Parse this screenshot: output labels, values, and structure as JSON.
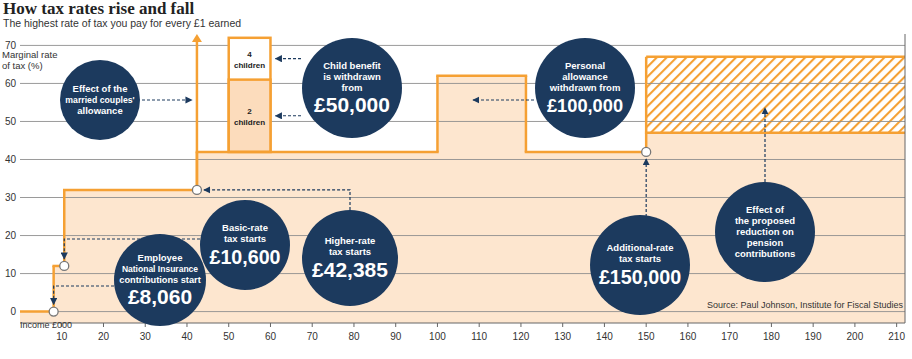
{
  "chart_data": {
    "type": "step",
    "title": "How tax rates rise and fall",
    "subtitle": "The highest rate of tax you pay for every £1 earned",
    "y_label": [
      "Marginal rate",
      "of tax (%)"
    ],
    "x_label": "Income £000",
    "xlim": [
      0,
      212
    ],
    "ylim": [
      -3,
      73
    ],
    "xticks": [
      10,
      20,
      30,
      40,
      50,
      60,
      70,
      80,
      90,
      100,
      110,
      120,
      130,
      140,
      150,
      160,
      170,
      180,
      190,
      200,
      210
    ],
    "yticks": [
      0,
      10,
      20,
      30,
      40,
      50,
      60,
      70
    ],
    "grid": true,
    "series": [
      {
        "color": "#f5a033",
        "bins": [
          0,
          8.06,
          10.6,
          42.385,
          100,
          121.2,
          150,
          212
        ],
        "values": [
          0,
          12,
          32,
          42,
          62,
          42,
          47
        ]
      },
      {
        "name": "2 children",
        "color": "#f5a033",
        "bins": [
          50,
          60
        ],
        "values": [
          61
        ]
      },
      {
        "name": "4 children",
        "color": "#f5a033",
        "bins": [
          50,
          60
        ],
        "values": [
          72
        ]
      },
      {
        "color": "#f5a033",
        "line_style": "hatch",
        "bins": [
          150,
          212
        ],
        "values": [
          67
        ]
      }
    ],
    "spike": {
      "x": 42.385,
      "value": 73
    },
    "annotations": [
      {
        "text": [
          "Effect of the",
          "married couples'",
          "allowance"
        ]
      },
      {
        "text": [
          "Child benefit",
          "is withdrawn",
          "from"
        ],
        "amount": "£50,000"
      },
      {
        "text": [
          "Personal",
          "allowance",
          "withdrawn from"
        ],
        "amount": "£100,000"
      },
      {
        "text": [
          "Basic-rate",
          "tax starts"
        ],
        "amount": "£10,600",
        "x": 10.6,
        "y": 12
      },
      {
        "text": [
          "Higher-rate",
          "tax starts"
        ],
        "amount": "£42,385",
        "x": 42.385,
        "y": 32
      },
      {
        "text": [
          "Employee",
          "National Insurance",
          "contributions start"
        ],
        "amount": "£8,060",
        "x": 8.06,
        "y": 0
      },
      {
        "text": [
          "Additional-rate",
          "tax starts"
        ],
        "amount": "£150,000",
        "x": 150,
        "y": 42
      },
      {
        "text": [
          "Effect of",
          "the proposed",
          "reduction on",
          "pension",
          "contributions"
        ]
      }
    ],
    "source": "Source: Paul Johnson, Institute for Fiscal Studies"
  }
}
